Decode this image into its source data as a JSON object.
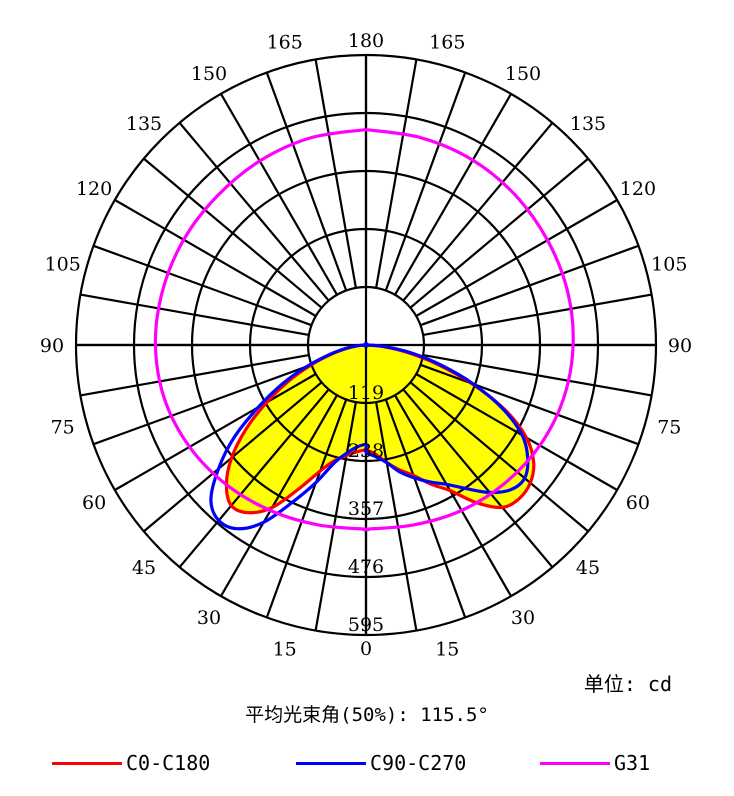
{
  "chart_data": {
    "type": "polar",
    "unit_label": "单位: cd",
    "beam_angle_label": "平均光束角(50%): 115.5°",
    "radial_ticks": [
      "119",
      "238",
      "357",
      "476",
      "595"
    ],
    "radial_max": 595,
    "angle_labels": [
      "0",
      "15",
      "30",
      "45",
      "60",
      "75",
      "90",
      "105",
      "120",
      "135",
      "150",
      "165",
      "180"
    ],
    "series": [
      {
        "name": "C0-C180",
        "color": "#ff0000",
        "fill": "#ffff00",
        "angles": [
          0,
          5,
          10,
          15,
          20,
          25,
          30,
          35,
          40,
          45,
          50,
          55,
          60,
          65,
          70,
          75,
          80,
          85,
          90
        ],
        "left": [
          215,
          220,
          230,
          245,
          275,
          325,
          385,
          420,
          430,
          405,
          360,
          300,
          235,
          175,
          120,
          75,
          40,
          15,
          0
        ],
        "right": [
          215,
          225,
          245,
          265,
          285,
          315,
          345,
          395,
          435,
          445,
          440,
          420,
          380,
          315,
          230,
          150,
          85,
          35,
          0
        ]
      },
      {
        "name": "C90-C270",
        "color": "#0000ff",
        "angles": [
          0,
          5,
          10,
          15,
          20,
          25,
          30,
          35,
          40,
          45,
          50,
          55,
          60,
          65,
          70,
          75,
          80,
          85,
          90
        ],
        "left": [
          205,
          210,
          225,
          250,
          300,
          355,
          420,
          460,
          470,
          450,
          395,
          330,
          255,
          190,
          130,
          80,
          45,
          18,
          0
        ],
        "right": [
          220,
          230,
          245,
          270,
          290,
          310,
          330,
          360,
          395,
          420,
          425,
          405,
          370,
          310,
          235,
          160,
          95,
          40,
          5
        ]
      },
      {
        "name": "G31",
        "color": "#ff00ff",
        "angles": [
          0,
          15,
          30,
          45,
          60,
          75,
          90,
          105,
          120,
          135,
          150,
          165,
          180
        ],
        "left": [
          378,
          382,
          392,
          405,
          418,
          428,
          432,
          432,
          432,
          432,
          436,
          440,
          442
        ],
        "right": [
          378,
          382,
          392,
          402,
          412,
          420,
          425,
          428,
          430,
          434,
          438,
          440,
          442
        ]
      }
    ]
  }
}
